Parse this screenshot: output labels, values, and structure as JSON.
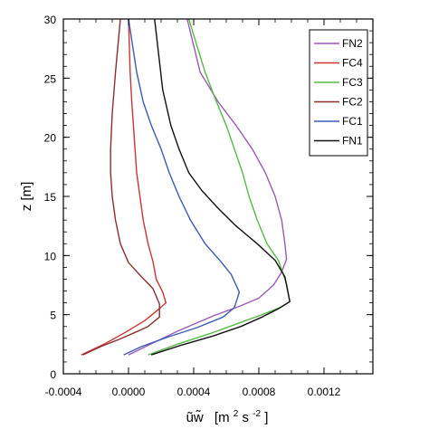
{
  "chart_data": {
    "type": "line",
    "xlabel": "ũw̃  [m² s⁻²]",
    "xlabel_parts": {
      "symbol": "ũw̃",
      "unit_open": "[m",
      "unit_sup1": "2",
      "unit_mid": " s",
      "unit_sup2": "-2",
      "unit_close": "]"
    },
    "ylabel": "z [m]",
    "xlim": [
      -0.0004,
      0.0015
    ],
    "ylim": [
      0,
      30
    ],
    "xticks": [
      -0.0004,
      0.0,
      0.0004,
      0.0008,
      0.0012
    ],
    "xtick_labels": [
      "-0.0004",
      "0.0000",
      "0.0004",
      "0.0008",
      "0.0012"
    ],
    "yticks": [
      0,
      5,
      10,
      15,
      20,
      25,
      30
    ],
    "ytick_labels": [
      "0",
      "5",
      "10",
      "15",
      "20",
      "25",
      "30"
    ],
    "grid": false,
    "legend_position": "top-right",
    "series": [
      {
        "name": "FN2",
        "color": "#9b59b6",
        "x": [
          0.0,
          0.00012,
          0.0003,
          0.00052,
          0.00068,
          0.0008,
          0.00089,
          0.00094,
          0.00097,
          0.00096,
          0.00094,
          0.0009,
          0.00084,
          0.00076,
          0.00066,
          0.00055,
          0.00044,
          0.00036
        ],
        "y": [
          1.6,
          2.4,
          3.6,
          4.9,
          5.7,
          6.4,
          7.5,
          8.6,
          9.7,
          11.0,
          13.0,
          15.0,
          17.0,
          19.0,
          21.0,
          23.0,
          25.5,
          30.0
        ]
      },
      {
        "name": "FC4",
        "color": "#cc3333",
        "x": [
          -0.00029,
          -0.00015,
          -2e-05,
          0.0001,
          0.00018,
          0.00023,
          0.00021,
          0.00017,
          0.00015,
          0.00012,
          9e-05,
          7e-05,
          5e-05,
          4e-05,
          3e-05,
          2e-05,
          1e-05,
          0.0
        ],
        "y": [
          1.6,
          2.5,
          3.5,
          4.5,
          5.4,
          6.0,
          6.9,
          8.0,
          9.5,
          11.0,
          13.0,
          15.0,
          17.0,
          19.0,
          21.0,
          23.0,
          25.5,
          30.0
        ]
      },
      {
        "name": "FC3",
        "color": "#55bb44",
        "x": [
          0.00012,
          0.0003,
          0.0005,
          0.00068,
          0.00082,
          0.00093,
          0.00099,
          0.00097,
          0.00092,
          0.00085,
          0.00079,
          0.00074,
          0.0007,
          0.00065,
          0.0006,
          0.00054,
          0.00047,
          0.00037
        ],
        "y": [
          1.6,
          2.5,
          3.4,
          4.3,
          5.0,
          5.6,
          6.1,
          7.6,
          9.6,
          11.0,
          13.0,
          15.0,
          17.0,
          19.0,
          21.0,
          23.0,
          25.5,
          30.0
        ]
      },
      {
        "name": "FC2",
        "color": "#8b2e2e",
        "x": [
          -0.00028,
          -0.00017,
          -6e-05,
          4e-05,
          0.00012,
          0.00019,
          0.00019,
          0.00015,
          8e-05,
          0.0,
          -5e-05,
          -8e-05,
          -0.0001,
          -0.00011,
          -0.00011,
          -0.0001,
          -8e-05,
          -5e-05
        ],
        "y": [
          1.6,
          2.3,
          2.9,
          3.5,
          4.0,
          4.8,
          5.9,
          7.2,
          8.2,
          9.4,
          11.0,
          13.0,
          15.0,
          17.0,
          19.0,
          22.0,
          25.5,
          30.0
        ]
      },
      {
        "name": "FC1",
        "color": "#3b5bb5",
        "x": [
          -3e-05,
          8e-05,
          0.00024,
          0.00042,
          0.00058,
          0.00065,
          0.00068,
          0.00063,
          0.00056,
          0.00047,
          0.00038,
          0.00031,
          0.00025,
          0.0002,
          0.00014,
          9e-05,
          5e-05,
          0.0
        ],
        "y": [
          1.6,
          2.3,
          3.1,
          3.9,
          4.8,
          5.6,
          6.9,
          8.4,
          9.6,
          11.0,
          13.0,
          15.0,
          17.0,
          19.0,
          21.0,
          23.0,
          25.5,
          30.0
        ]
      },
      {
        "name": "FN1",
        "color": "#111111",
        "x": [
          0.00014,
          0.00032,
          0.00052,
          0.00069,
          0.00082,
          0.00092,
          0.00099,
          0.00096,
          0.0009,
          0.00079,
          0.00066,
          0.00055,
          0.00045,
          0.00037,
          0.00031,
          0.00026,
          0.00021,
          0.00016
        ],
        "y": [
          1.6,
          2.4,
          3.2,
          4.0,
          4.8,
          5.5,
          6.1,
          8.2,
          9.6,
          11.0,
          12.5,
          14.0,
          15.5,
          17.0,
          19.0,
          21.0,
          24.0,
          30.0
        ]
      }
    ]
  }
}
